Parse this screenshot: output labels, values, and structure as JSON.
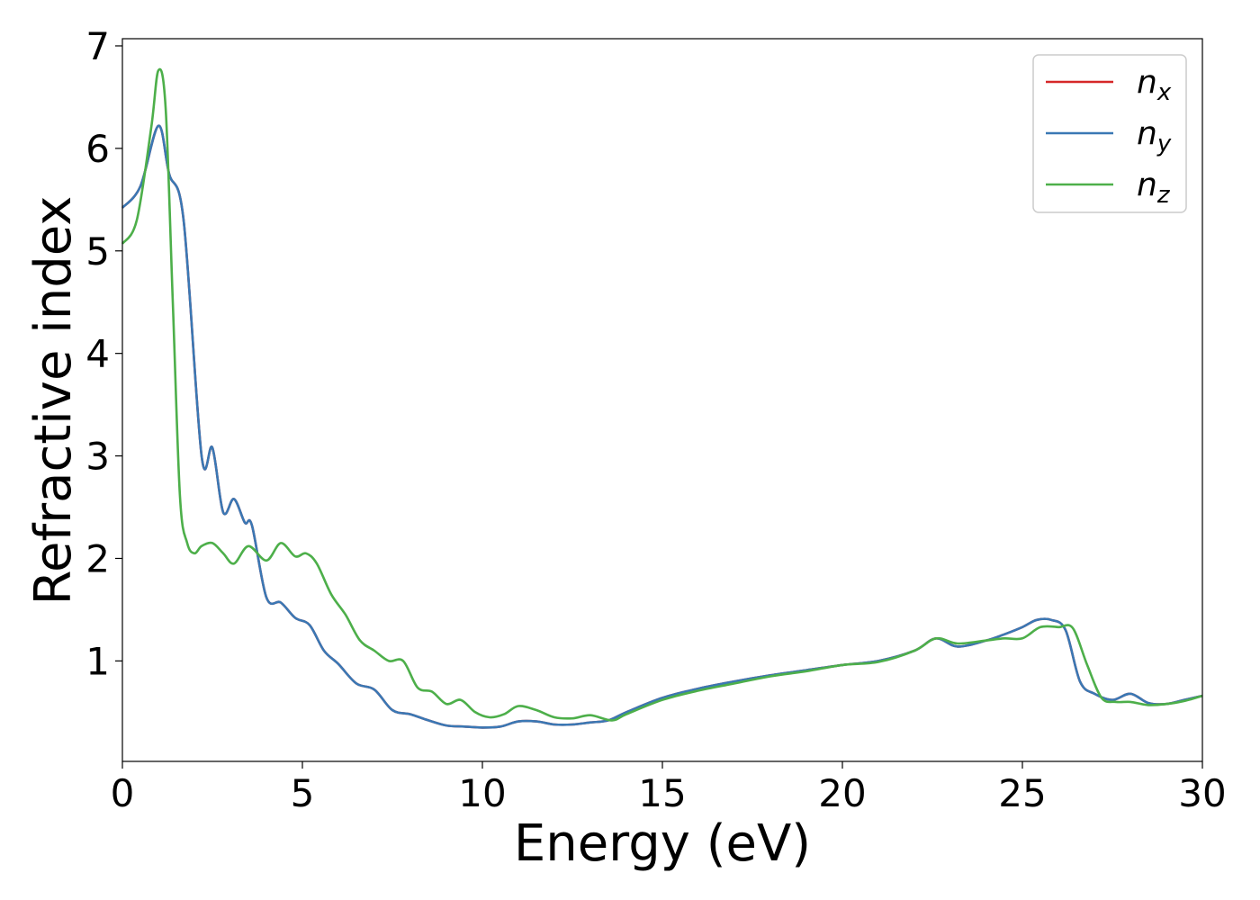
{
  "chart_data": {
    "type": "line",
    "xlabel": "Energy (eV)",
    "ylabel": "Refractive index",
    "xlim": [
      0,
      30
    ],
    "ylim": [
      0.02,
      7.07
    ],
    "xticks": [
      "0",
      "5",
      "10",
      "15",
      "20",
      "25",
      "30"
    ],
    "yticks": [
      "1",
      "2",
      "3",
      "4",
      "5",
      "6",
      "7"
    ],
    "grid": false,
    "legend_position": "top-right",
    "series": [
      {
        "name": "n_x",
        "label_base": "n",
        "label_sub": "x",
        "color": "#d62728",
        "x": [
          0,
          0.5,
          1.0,
          1.3,
          1.7,
          2.2,
          2.5,
          2.8,
          3.1,
          3.4,
          3.6,
          4.0,
          4.4,
          4.8,
          5.2,
          5.6,
          6.0,
          6.5,
          7.0,
          7.5,
          8.0,
          8.5,
          9.0,
          9.5,
          10.0,
          10.5,
          11.0,
          11.5,
          12.0,
          12.5,
          13.0,
          13.5,
          14.0,
          15.0,
          16.0,
          17.0,
          18.0,
          19.0,
          20.0,
          21.0,
          22.0,
          22.6,
          23.2,
          24.0,
          24.5,
          25.0,
          25.4,
          25.8,
          26.2,
          26.6,
          27.0,
          27.5,
          28.0,
          28.5,
          29.0,
          29.5,
          30.0
        ],
        "y": [
          5.42,
          5.63,
          6.22,
          5.75,
          5.3,
          3.0,
          3.08,
          2.45,
          2.58,
          2.35,
          2.32,
          1.62,
          1.57,
          1.42,
          1.35,
          1.1,
          0.97,
          0.78,
          0.72,
          0.52,
          0.48,
          0.42,
          0.37,
          0.36,
          0.35,
          0.36,
          0.41,
          0.41,
          0.38,
          0.38,
          0.4,
          0.42,
          0.5,
          0.64,
          0.73,
          0.8,
          0.86,
          0.91,
          0.96,
          1.0,
          1.1,
          1.22,
          1.14,
          1.2,
          1.26,
          1.33,
          1.4,
          1.4,
          1.3,
          0.8,
          0.68,
          0.62,
          0.68,
          0.59,
          0.58,
          0.62,
          0.66
        ]
      },
      {
        "name": "n_y",
        "label_base": "n",
        "label_sub": "y",
        "color": "#3a78b4",
        "x": [
          0,
          0.5,
          1.0,
          1.3,
          1.7,
          2.2,
          2.5,
          2.8,
          3.1,
          3.4,
          3.6,
          4.0,
          4.4,
          4.8,
          5.2,
          5.6,
          6.0,
          6.5,
          7.0,
          7.5,
          8.0,
          8.5,
          9.0,
          9.5,
          10.0,
          10.5,
          11.0,
          11.5,
          12.0,
          12.5,
          13.0,
          13.5,
          14.0,
          15.0,
          16.0,
          17.0,
          18.0,
          19.0,
          20.0,
          21.0,
          22.0,
          22.6,
          23.2,
          24.0,
          24.5,
          25.0,
          25.4,
          25.8,
          26.2,
          26.6,
          27.0,
          27.5,
          28.0,
          28.5,
          29.0,
          29.5,
          30.0
        ],
        "y": [
          5.42,
          5.63,
          6.22,
          5.75,
          5.3,
          3.0,
          3.08,
          2.45,
          2.58,
          2.35,
          2.32,
          1.62,
          1.57,
          1.42,
          1.35,
          1.1,
          0.97,
          0.78,
          0.72,
          0.52,
          0.48,
          0.42,
          0.37,
          0.36,
          0.35,
          0.36,
          0.41,
          0.41,
          0.38,
          0.38,
          0.4,
          0.42,
          0.5,
          0.64,
          0.73,
          0.8,
          0.86,
          0.91,
          0.96,
          1.0,
          1.1,
          1.22,
          1.14,
          1.2,
          1.26,
          1.33,
          1.4,
          1.4,
          1.3,
          0.8,
          0.68,
          0.62,
          0.68,
          0.59,
          0.58,
          0.62,
          0.66
        ]
      },
      {
        "name": "n_z",
        "label_base": "n",
        "label_sub": "z",
        "color": "#4daf4a",
        "x": [
          0,
          0.4,
          0.8,
          1.0,
          1.2,
          1.4,
          1.6,
          1.8,
          2.0,
          2.2,
          2.5,
          2.8,
          3.1,
          3.5,
          4.0,
          4.4,
          4.8,
          5.1,
          5.4,
          5.8,
          6.2,
          6.6,
          7.0,
          7.4,
          7.8,
          8.2,
          8.6,
          9.0,
          9.4,
          9.8,
          10.2,
          10.6,
          11.0,
          11.5,
          12.0,
          12.5,
          13.0,
          13.6,
          14.0,
          15.0,
          16.0,
          17.0,
          18.0,
          19.0,
          20.0,
          21.0,
          22.0,
          22.6,
          23.2,
          24.0,
          24.5,
          25.0,
          25.5,
          26.0,
          26.4,
          26.8,
          27.2,
          27.6,
          28.0,
          28.5,
          29.0,
          29.5,
          30.0
        ],
        "y": [
          5.07,
          5.3,
          6.2,
          6.76,
          6.4,
          4.5,
          2.6,
          2.15,
          2.05,
          2.12,
          2.15,
          2.05,
          1.95,
          2.12,
          1.98,
          2.15,
          2.02,
          2.05,
          1.95,
          1.65,
          1.45,
          1.2,
          1.1,
          1.0,
          1.0,
          0.74,
          0.7,
          0.58,
          0.62,
          0.5,
          0.45,
          0.48,
          0.56,
          0.52,
          0.45,
          0.44,
          0.47,
          0.42,
          0.48,
          0.62,
          0.71,
          0.78,
          0.85,
          0.9,
          0.96,
          0.99,
          1.1,
          1.22,
          1.17,
          1.2,
          1.22,
          1.22,
          1.33,
          1.33,
          1.32,
          0.96,
          0.64,
          0.6,
          0.6,
          0.57,
          0.58,
          0.61,
          0.66
        ]
      }
    ]
  }
}
